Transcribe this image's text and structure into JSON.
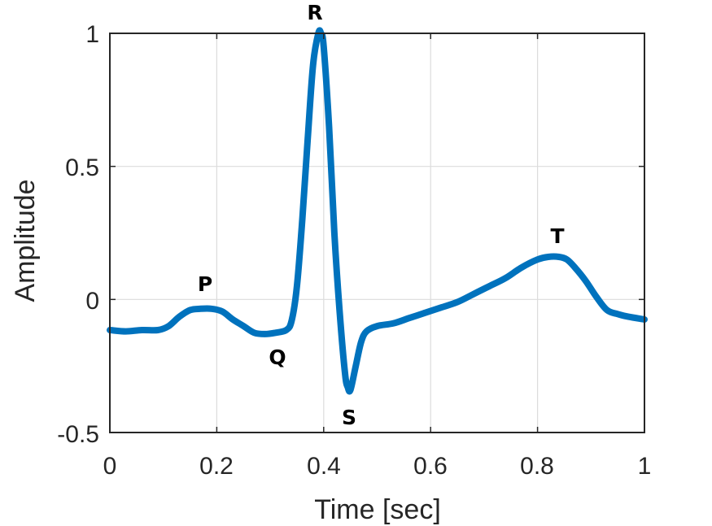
{
  "chart_data": {
    "type": "line",
    "title": "",
    "xlabel": "Time [sec]",
    "ylabel": "Amplitude",
    "xlim": [
      0,
      1
    ],
    "ylim": [
      -0.5,
      1
    ],
    "grid": true,
    "legend": null,
    "line_color": "#0072BD",
    "xticks": [
      0,
      0.2,
      0.4,
      0.6,
      0.8,
      1
    ],
    "xtick_labels": [
      "0",
      "0.2",
      "0.4",
      "0.6",
      "0.8",
      "1"
    ],
    "yticks": [
      -0.5,
      0,
      0.5,
      1
    ],
    "ytick_labels": [
      "-0.5",
      "0",
      "0.5",
      "1"
    ],
    "series": [
      {
        "name": "ECG",
        "x": [
          0,
          0.03,
          0.06,
          0.09,
          0.11,
          0.13,
          0.15,
          0.17,
          0.19,
          0.21,
          0.23,
          0.25,
          0.27,
          0.29,
          0.31,
          0.33,
          0.34,
          0.35,
          0.36,
          0.37,
          0.38,
          0.39,
          0.395,
          0.4,
          0.41,
          0.42,
          0.43,
          0.44,
          0.445,
          0.45,
          0.46,
          0.47,
          0.48,
          0.5,
          0.53,
          0.56,
          0.59,
          0.62,
          0.65,
          0.68,
          0.71,
          0.74,
          0.77,
          0.8,
          0.82,
          0.84,
          0.855,
          0.87,
          0.89,
          0.91,
          0.93,
          0.95,
          0.97,
          1.0
        ],
        "y": [
          -0.115,
          -0.12,
          -0.115,
          -0.115,
          -0.1,
          -0.065,
          -0.04,
          -0.035,
          -0.035,
          -0.045,
          -0.075,
          -0.1,
          -0.125,
          -0.13,
          -0.125,
          -0.115,
          -0.08,
          0.05,
          0.3,
          0.6,
          0.88,
          1.0,
          1.0,
          0.95,
          0.65,
          0.25,
          -0.05,
          -0.28,
          -0.33,
          -0.34,
          -0.25,
          -0.16,
          -0.12,
          -0.1,
          -0.09,
          -0.07,
          -0.05,
          -0.03,
          -0.01,
          0.02,
          0.05,
          0.08,
          0.12,
          0.15,
          0.16,
          0.16,
          0.15,
          0.12,
          0.07,
          0.01,
          -0.04,
          -0.055,
          -0.065,
          -0.075
        ]
      }
    ],
    "annotations": [
      {
        "text": "P",
        "x": 0.175,
        "y": 0.06
      },
      {
        "text": "Q",
        "x": 0.31,
        "y": -0.22
      },
      {
        "text": "R",
        "x": 0.385,
        "y": 1.07
      },
      {
        "text": "S",
        "x": 0.448,
        "y": -0.44
      },
      {
        "text": "T",
        "x": 0.835,
        "y": 0.24
      }
    ]
  },
  "labels": {
    "xlabel": "Time [sec]",
    "ylabel": "Amplitude",
    "xticks": [
      "0",
      "0.2",
      "0.4",
      "0.6",
      "0.8",
      "1"
    ],
    "yticks": [
      "1",
      "0.5",
      "0",
      "-0.5"
    ],
    "waves": {
      "p": "P",
      "q": "Q",
      "r": "R",
      "s": "S",
      "t": "T"
    }
  }
}
